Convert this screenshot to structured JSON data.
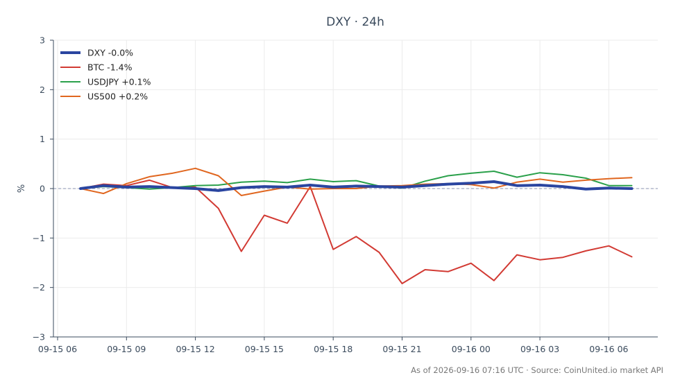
{
  "chart_data": {
    "type": "line",
    "title": "DXY · 24h",
    "xlabel": "",
    "ylabel": "%",
    "ylim": [
      -3,
      3
    ],
    "yticks": [
      3,
      2,
      1,
      0,
      -1,
      -2,
      -3
    ],
    "ytick_labels": [
      "3",
      "2",
      "1",
      "0",
      "−1",
      "−2",
      "−3"
    ],
    "xtick_labels": [
      "09-15 06",
      "09-15 09",
      "09-15 12",
      "09-15 15",
      "09-15 18",
      "09-15 21",
      "09-16 00",
      "09-16 03",
      "09-16 06"
    ],
    "grid": true,
    "legend_position": "top-left",
    "zero_line": true,
    "x": [
      "09-15 07",
      "09-15 08",
      "09-15 09",
      "09-15 10",
      "09-15 11",
      "09-15 12",
      "09-15 13",
      "09-15 14",
      "09-15 15",
      "09-15 16",
      "09-15 17",
      "09-15 18",
      "09-15 19",
      "09-15 20",
      "09-15 21",
      "09-15 22",
      "09-15 23",
      "09-16 00",
      "09-16 01",
      "09-16 02",
      "09-16 03",
      "09-16 04",
      "09-16 05",
      "09-16 06",
      "09-16 07"
    ],
    "series": [
      {
        "name": "DXY -0.0%",
        "color": "#2a45a0",
        "values": [
          0.0,
          0.06,
          0.03,
          0.04,
          0.02,
          0.0,
          -0.04,
          0.02,
          0.04,
          0.03,
          0.07,
          0.03,
          0.05,
          0.04,
          0.03,
          0.06,
          0.09,
          0.11,
          0.14,
          0.06,
          0.07,
          0.04,
          -0.01,
          0.01,
          0.0
        ]
      },
      {
        "name": "BTC -1.4%",
        "color": "#d23a33",
        "values": [
          0.0,
          0.09,
          0.06,
          0.17,
          0.02,
          0.03,
          -0.4,
          -1.27,
          -0.54,
          -0.7,
          0.04,
          -1.23,
          -0.97,
          -1.29,
          -1.92,
          -1.64,
          -1.68,
          -1.51,
          -1.86,
          -1.34,
          -1.44,
          -1.39,
          -1.26,
          -1.16,
          -1.38
        ]
      },
      {
        "name": "USDJPY +0.1%",
        "color": "#2aa04a",
        "values": [
          0.0,
          0.04,
          0.02,
          -0.01,
          0.02,
          0.06,
          0.07,
          0.13,
          0.15,
          0.12,
          0.19,
          0.14,
          0.16,
          0.05,
          0.01,
          0.15,
          0.26,
          0.31,
          0.35,
          0.23,
          0.32,
          0.28,
          0.21,
          0.06,
          0.06
        ]
      },
      {
        "name": "US500 +0.2%",
        "color": "#e0661f",
        "values": [
          0.0,
          -0.1,
          0.1,
          0.24,
          0.31,
          0.41,
          0.26,
          -0.14,
          -0.05,
          0.03,
          -0.01,
          0.0,
          0.0,
          0.05,
          0.06,
          0.09,
          0.1,
          0.08,
          0.01,
          0.13,
          0.19,
          0.13,
          0.17,
          0.2,
          0.22
        ]
      }
    ],
    "footnote": "As of 2026-09-16 07:16 UTC · Source: CoinUnited.io market API"
  }
}
